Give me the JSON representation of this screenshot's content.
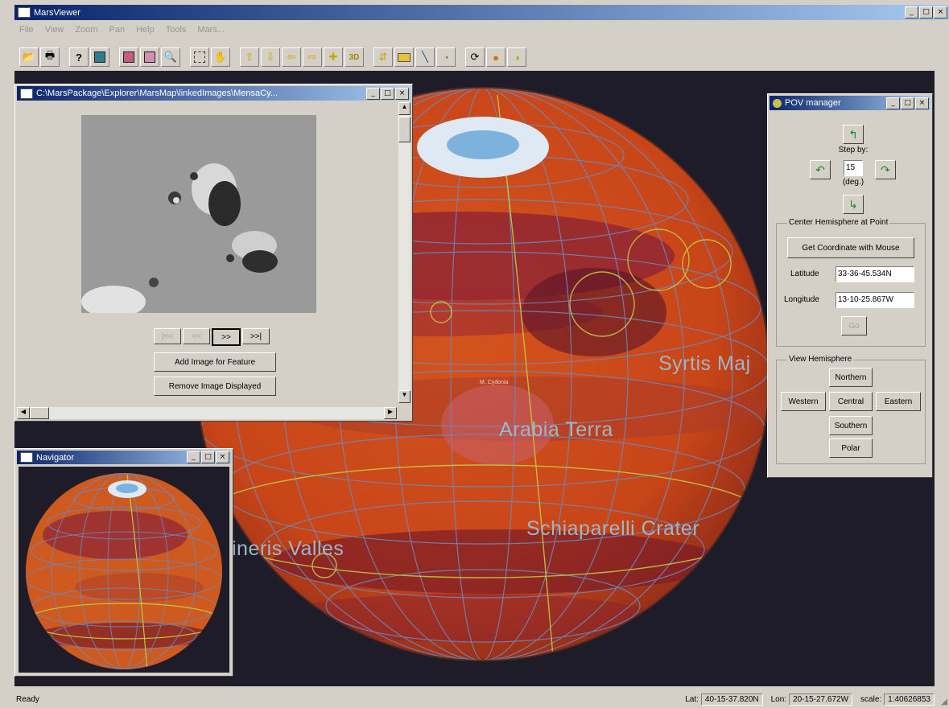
{
  "app": {
    "title": "MarsViewer"
  },
  "menu": [
    "File",
    "View",
    "Zoom",
    "Pan",
    "Help",
    "Tools",
    "Mars..."
  ],
  "toolbar": {
    "groups": [
      [
        "open-icon",
        "print-icon"
      ],
      [
        "help-icon",
        "layers-icon"
      ],
      [
        "zoom-window-icon",
        "zoom-out-icon",
        "zoom-in-icon"
      ],
      [
        "select-icon",
        "pan-hand-icon"
      ],
      [
        "pan-up-icon",
        "pan-down-icon",
        "pan-left-icon",
        "pan-right-icon",
        "center-icon",
        "view-3d-icon"
      ],
      [
        "legend-icon",
        "label-icon",
        "measure-icon",
        "identify-icon"
      ],
      [
        "rotate-icon",
        "globe-icon",
        "refresh-icon"
      ]
    ],
    "view_3d_label": "3D"
  },
  "image_window": {
    "title": "C:\\MarsPackage\\Explorer\\MarsMap\\linkedImages\\MensaCy...",
    "nav": {
      "first": "|<<",
      "prev": "<<",
      "next": ">>",
      "last": ">>|"
    },
    "add_button": "Add Image for Feature",
    "remove_button": "Remove Image Displayed"
  },
  "navigator": {
    "title": "Navigator"
  },
  "pov_panel": {
    "title": "POV manager",
    "step_label": "Step by:",
    "step_value": "15",
    "step_unit": "(deg.)",
    "center_group": "Center Hemisphere at Point",
    "get_coord_button": "Get Coordinate with Mouse",
    "lat_label": "Latitude",
    "lat_value": "33-36-45.534N",
    "lon_label": "Longitude",
    "lon_value": "13-10-25.867W",
    "go_button": "Go",
    "view_group": "View Hemisphere",
    "northern": "Northern",
    "western": "Western",
    "central": "Central",
    "eastern": "Eastern",
    "southern": "Southern",
    "polar": "Polar"
  },
  "map_labels": {
    "syrtis": "Syrtis Maj",
    "arabia": "Arabia Terra",
    "schiaparelli": "Schiaparelli Crater",
    "marineris": "ineris Valles",
    "small_feature": "M. Cydonia"
  },
  "statusbar": {
    "status": "Ready",
    "lat_label": "Lat:",
    "lat_value": "40-15-37.820N",
    "lon_label": "Lon:",
    "lon_value": "20-15-27.672W",
    "scale_label": "scale:",
    "scale_value": "1:40626853"
  },
  "colors": {
    "map_bg": "#1e1c29",
    "planet": "#c8461e",
    "grid": "#6f86b8",
    "label": "#9fb6c6",
    "titlebar": "#0a246a"
  }
}
